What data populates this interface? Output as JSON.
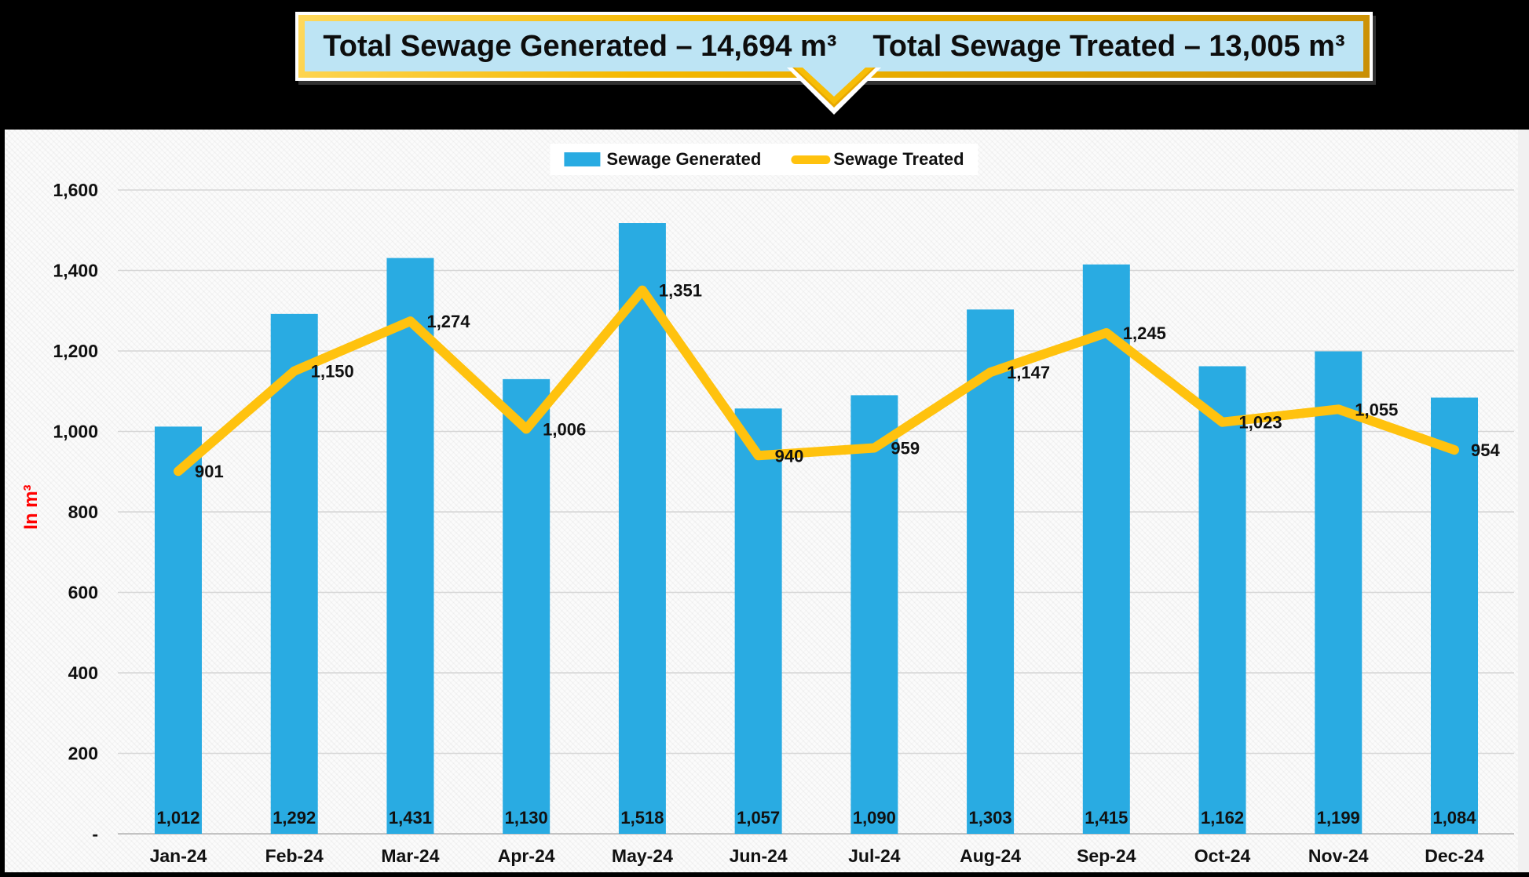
{
  "header": {
    "title_generated": "Total Sewage Generated – 14,694 m³",
    "title_treated": "Total Sewage Treated – 13,005 m³"
  },
  "chart_data": {
    "type": "bar",
    "subtype": "bar+line combo",
    "categories": [
      "Jan-24",
      "Feb-24",
      "Mar-24",
      "Apr-24",
      "May-24",
      "Jun-24",
      "Jul-24",
      "Aug-24",
      "Sep-24",
      "Oct-24",
      "Nov-24",
      "Dec-24"
    ],
    "series": [
      {
        "name": "Sewage Generated",
        "type": "bar",
        "color": "#29ABE2",
        "values": [
          1012,
          1292,
          1431,
          1130,
          1518,
          1057,
          1090,
          1303,
          1415,
          1162,
          1199,
          1084
        ],
        "labels": [
          "1,012",
          "1,292",
          "1,431",
          "1,130",
          "1,518",
          "1,057",
          "1,090",
          "1,303",
          "1,415",
          "1,162",
          "1,199",
          "1,084"
        ]
      },
      {
        "name": "Sewage Treated",
        "type": "line",
        "color": "#FFC20E",
        "values": [
          901,
          1150,
          1274,
          1006,
          1351,
          940,
          959,
          1147,
          1245,
          1023,
          1055,
          954
        ],
        "labels": [
          "901",
          "1,150",
          "1,274",
          "1,006",
          "1,351",
          "940",
          "959",
          "1,147",
          "1,245",
          "1,023",
          "1,055",
          "954"
        ]
      }
    ],
    "title": "",
    "xlabel": "",
    "ylabel": "In m³",
    "ylim": [
      0,
      1600
    ],
    "ytick_interval": 200,
    "yticks": [
      "1,600",
      "1,400",
      "1,200",
      "1,000",
      "800",
      "600",
      "400",
      "200",
      "-"
    ],
    "grid": true,
    "legend_position": "top-center",
    "colors": {
      "bar": "#29ABE2",
      "line": "#FFC20E",
      "gridline": "#D6D6D6",
      "axis_line": "#C3C3C3",
      "label_text": "#111111",
      "ylabel_text": "#FF0000",
      "banner_fill": "#BDE4F4",
      "banner_border_gold": "#E8A800",
      "header_band": "#000000"
    }
  }
}
